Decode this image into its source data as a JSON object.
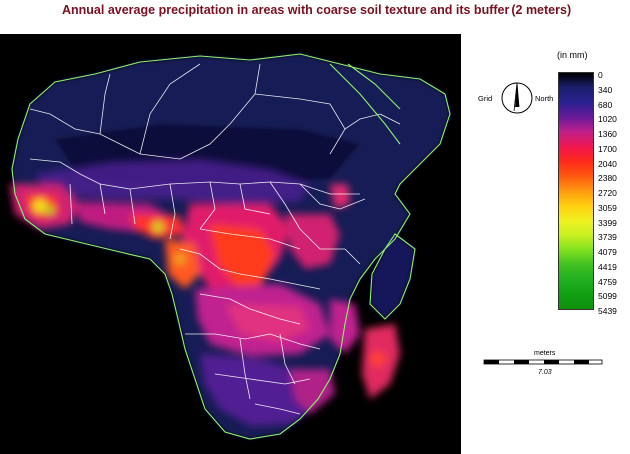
{
  "title": {
    "main": "Annual average precipitation in areas with coarse soil texture and its buffer",
    "suffix": "(2 meters)"
  },
  "north_arrow": {
    "left_label": "Grid",
    "right_label": "North"
  },
  "legend": {
    "unit": "(in mm)",
    "values": [
      "0",
      "340",
      "680",
      "1020",
      "1360",
      "1700",
      "2040",
      "2380",
      "2720",
      "3059",
      "3399",
      "3739",
      "4079",
      "4419",
      "4759",
      "5099",
      "5439"
    ],
    "colors": [
      "#000000",
      "#1a1f6e",
      "#2a2090",
      "#6a1a9a",
      "#c0208a",
      "#f01650",
      "#ff2a1a",
      "#ff5a10",
      "#ff9a10",
      "#ffd010",
      "#f0f020",
      "#c8f020",
      "#80e020",
      "#40c020",
      "#20b020",
      "#10a010",
      "#109010"
    ]
  },
  "scale_bar": {
    "unit": "meters",
    "value": "7.03"
  }
}
